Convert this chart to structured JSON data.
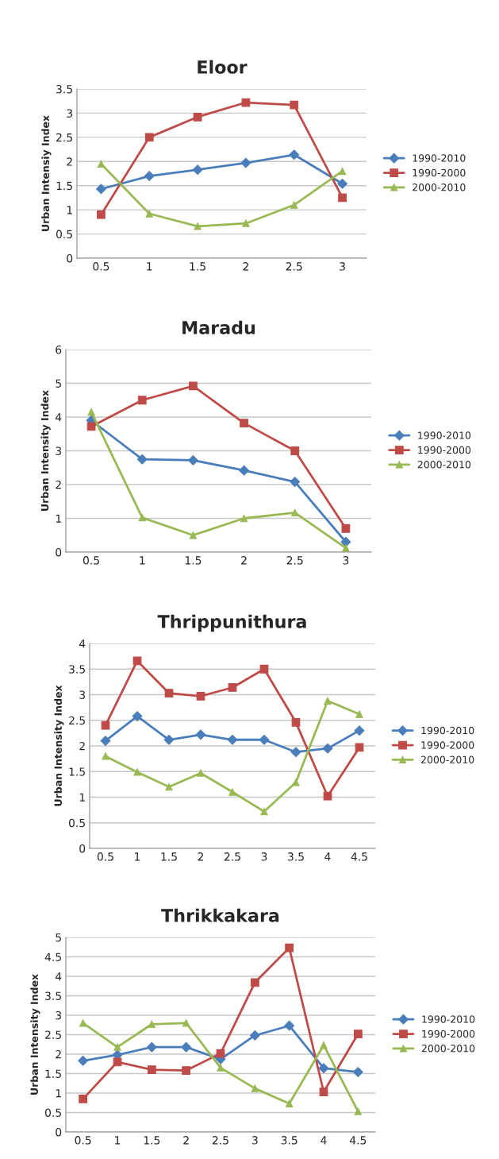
{
  "chart_data": [
    {
      "type": "line",
      "title": "Eloor",
      "ylabel": "Urban Intensiy Index",
      "categories": [
        "0.5",
        "1",
        "1.5",
        "2",
        "2.5",
        "3"
      ],
      "ylim": [
        0,
        3.5
      ],
      "yticks": [
        0,
        0.5,
        1,
        1.5,
        2,
        2.5,
        3,
        3.5
      ],
      "grid": "y",
      "legend": "right",
      "series": [
        {
          "name": "1990-2010",
          "color": "#4a7ebb",
          "marker": "diamond",
          "values": [
            1.43,
            1.7,
            1.83,
            1.97,
            2.14,
            1.54
          ]
        },
        {
          "name": "1990-2000",
          "color": "#be4b48",
          "marker": "square",
          "values": [
            0.9,
            2.5,
            2.92,
            3.22,
            3.17,
            1.25
          ]
        },
        {
          "name": "2000-2010",
          "color": "#98b954",
          "marker": "triangle",
          "values": [
            1.95,
            0.92,
            0.66,
            0.72,
            1.1,
            1.8
          ]
        }
      ]
    },
    {
      "type": "line",
      "title": "Maradu",
      "ylabel": "Urban Intensity Index",
      "categories": [
        "0.5",
        "1",
        "1.5",
        "2",
        "2.5",
        "3"
      ],
      "ylim": [
        0,
        6
      ],
      "yticks": [
        0,
        1,
        2,
        3,
        4,
        5,
        6
      ],
      "grid": "y",
      "legend": "right",
      "series": [
        {
          "name": "1990-2010",
          "color": "#4a7ebb",
          "marker": "diamond",
          "values": [
            3.9,
            2.75,
            2.72,
            2.42,
            2.08,
            0.3
          ]
        },
        {
          "name": "1990-2000",
          "color": "#be4b48",
          "marker": "square",
          "values": [
            3.72,
            4.5,
            4.92,
            3.82,
            3.0,
            0.7
          ]
        },
        {
          "name": "2000-2010",
          "color": "#98b954",
          "marker": "triangle",
          "values": [
            4.15,
            1.02,
            0.5,
            1.0,
            1.17,
            0.12
          ]
        }
      ]
    },
    {
      "type": "line",
      "title": "Thrippunithura",
      "ylabel": "Urban Intensity Index",
      "categories": [
        "0.5",
        "1",
        "1.5",
        "2",
        "2.5",
        "3",
        "3.5",
        "4",
        "4.5"
      ],
      "ylim": [
        0,
        4
      ],
      "yticks": [
        0,
        0.5,
        1,
        1.5,
        2,
        2.5,
        3,
        3.5,
        4
      ],
      "grid": "y",
      "legend": "right",
      "series": [
        {
          "name": "1990-2010",
          "color": "#4a7ebb",
          "marker": "diamond",
          "values": [
            2.1,
            2.58,
            2.12,
            2.22,
            2.12,
            2.12,
            1.88,
            1.95,
            2.3
          ]
        },
        {
          "name": "1990-2000",
          "color": "#be4b48",
          "marker": "square",
          "values": [
            2.4,
            3.66,
            3.03,
            2.97,
            3.14,
            3.5,
            2.46,
            1.02,
            1.97
          ]
        },
        {
          "name": "2000-2010",
          "color": "#98b954",
          "marker": "triangle",
          "values": [
            1.8,
            1.49,
            1.2,
            1.47,
            1.1,
            0.72,
            1.29,
            2.88,
            2.62
          ]
        }
      ]
    },
    {
      "type": "line",
      "title": "Thrikkakara",
      "ylabel": "Urban Intensity Index",
      "categories": [
        "0.5",
        "1",
        "1.5",
        "2",
        "2.5",
        "3",
        "3.5",
        "4",
        "4.5"
      ],
      "ylim": [
        0,
        5
      ],
      "yticks": [
        0,
        0.5,
        1,
        1.5,
        2,
        2.5,
        3,
        3.5,
        4,
        4.5,
        5
      ],
      "grid": "y",
      "legend": "right",
      "series": [
        {
          "name": "1990-2010",
          "color": "#4a7ebb",
          "marker": "diamond",
          "values": [
            1.83,
            1.98,
            2.18,
            2.18,
            1.87,
            2.48,
            2.73,
            1.64,
            1.54
          ]
        },
        {
          "name": "1990-2000",
          "color": "#be4b48",
          "marker": "square",
          "values": [
            0.85,
            1.8,
            1.6,
            1.58,
            2.02,
            3.84,
            4.73,
            1.03,
            2.52
          ]
        },
        {
          "name": "2000-2010",
          "color": "#98b954",
          "marker": "triangle",
          "values": [
            2.8,
            2.18,
            2.77,
            2.8,
            1.65,
            1.12,
            0.73,
            2.23,
            0.53
          ]
        }
      ]
    }
  ]
}
